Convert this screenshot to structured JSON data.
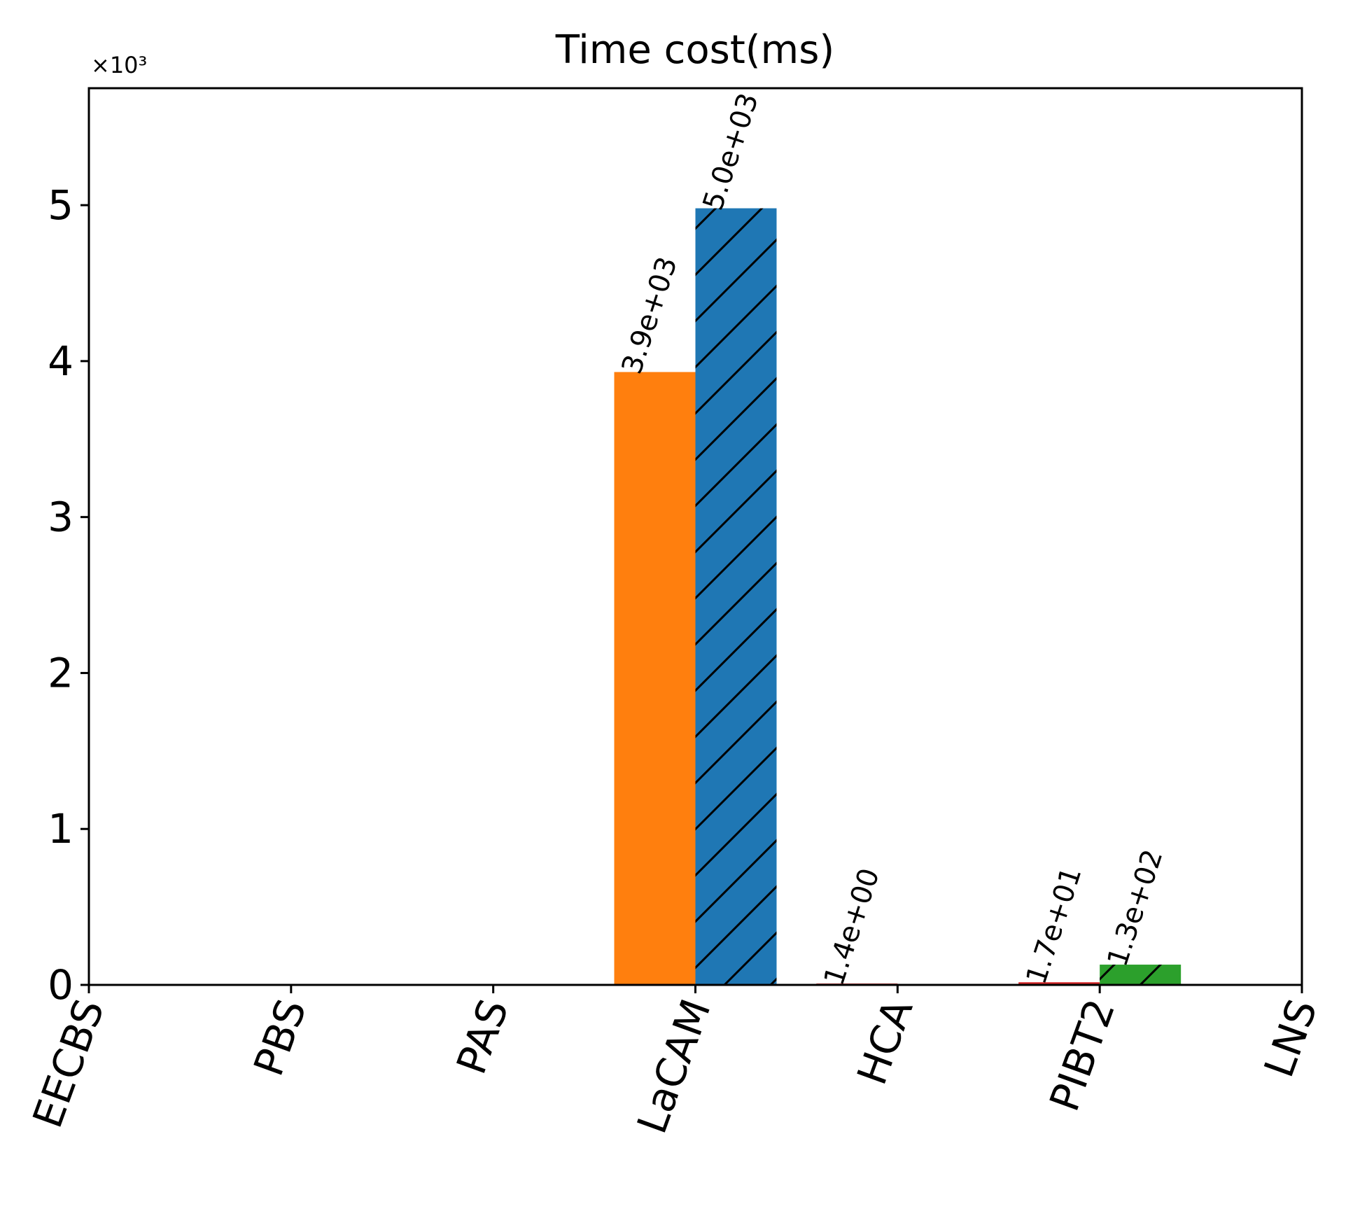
{
  "chart_data": {
    "type": "bar",
    "title": "Time cost(ms)",
    "xlabel": "",
    "ylabel": "",
    "y_offset_label": "×10³",
    "y_scale_factor": 1000,
    "ylim": [
      0,
      5750
    ],
    "grid": false,
    "legend": "none",
    "categories": [
      "EECBS",
      "PBS",
      "PAS",
      "LaCAM",
      "HCA",
      "PIBT2",
      "LNS"
    ],
    "yticks": [
      {
        "value": 0,
        "label": "0"
      },
      {
        "value": 1000,
        "label": "1"
      },
      {
        "value": 2000,
        "label": "2"
      },
      {
        "value": 3000,
        "label": "3"
      },
      {
        "value": 4000,
        "label": "4"
      },
      {
        "value": 5000,
        "label": "5"
      }
    ],
    "bars": [
      {
        "category": "LaCAM",
        "side": "left",
        "value": 3930,
        "label": "3.9e+03",
        "color": "#ff7f0e",
        "hatch": false
      },
      {
        "category": "LaCAM",
        "side": "right",
        "value": 4980,
        "label": "5.0e+03",
        "color": "#1f77b4",
        "hatch": true
      },
      {
        "category": "HCA",
        "side": "left",
        "value": 1.4,
        "label": "1.4e+00",
        "color": "#d62728",
        "hatch": false
      },
      {
        "category": "PIBT2",
        "side": "left",
        "value": 17,
        "label": "1.7e+01",
        "color": "#d62728",
        "hatch": false
      },
      {
        "category": "PIBT2",
        "side": "right",
        "value": 130,
        "label": "1.3e+02",
        "color": "#2ca02c",
        "hatch": true
      }
    ]
  }
}
